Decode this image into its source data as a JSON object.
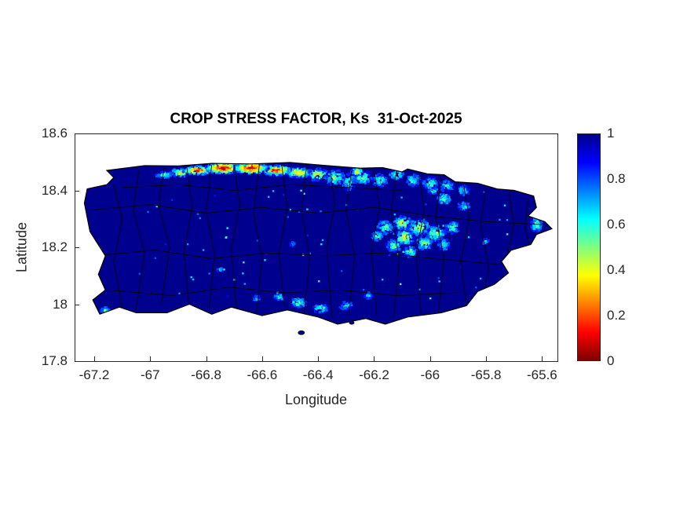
{
  "figure": {
    "title": "CROP STRESS FACTOR, Ks  31-Oct-2025",
    "xlabel": "Longitude",
    "ylabel": "Latitude",
    "background_color": "#ffffff",
    "axis_color": "#262626",
    "title_color": "#000000"
  },
  "chart_data": {
    "type": "heatmap",
    "title": "CROP STRESS FACTOR, Ks  31-Oct-2025",
    "variable": "Crop stress factor Ks",
    "date": "31-Oct-2025",
    "region": "Puerto Rico (municipal boundaries shown)",
    "xlabel": "Longitude",
    "ylabel": "Latitude",
    "xlim": [
      -67.27,
      -65.545
    ],
    "ylim": [
      17.8,
      18.6
    ],
    "grid": false,
    "x_ticks": [
      {
        "v": -67.2,
        "label": "-67.2"
      },
      {
        "v": -67,
        "label": "-67"
      },
      {
        "v": -66.8,
        "label": "-66.8"
      },
      {
        "v": -66.6,
        "label": "-66.6"
      },
      {
        "v": -66.4,
        "label": "-66.4"
      },
      {
        "v": -66.2,
        "label": "-66.2"
      },
      {
        "v": -66,
        "label": "-66"
      },
      {
        "v": -65.8,
        "label": "-65.8"
      },
      {
        "v": -65.6,
        "label": "-65.6"
      }
    ],
    "y_ticks": [
      {
        "v": 17.8,
        "label": "17.8"
      },
      {
        "v": 18,
        "label": "18"
      },
      {
        "v": 18.2,
        "label": "18.2"
      },
      {
        "v": 18.4,
        "label": "18.4"
      },
      {
        "v": 18.6,
        "label": "18.6"
      }
    ],
    "colorbar": {
      "position": "right",
      "ticks": [
        {
          "v": 0,
          "label": "0"
        },
        {
          "v": 0.2,
          "label": "0.2"
        },
        {
          "v": 0.4,
          "label": "0.4"
        },
        {
          "v": 0.6,
          "label": "0.6"
        },
        {
          "v": 0.8,
          "label": "0.8"
        },
        {
          "v": 1,
          "label": "1"
        }
      ],
      "range": [
        0,
        1
      ],
      "colormap": "jet reversed (Ks=1 dark blue, Ks=0 dark red)"
    },
    "colormap_stops": [
      {
        "t": 0,
        "color": "#00008F"
      },
      {
        "t": 0.125,
        "color": "#0000FF"
      },
      {
        "t": 0.375,
        "color": "#00FFFF"
      },
      {
        "t": 0.625,
        "color": "#FFFF00"
      },
      {
        "t": 0.875,
        "color": "#FF0000"
      },
      {
        "t": 1,
        "color": "#7F0000"
      }
    ],
    "base_value": 1,
    "coastline": [
      [
        -67.155,
        18.47
      ],
      [
        -67.02,
        18.487
      ],
      [
        -66.9,
        18.486
      ],
      [
        -66.78,
        18.495
      ],
      [
        -66.64,
        18.493
      ],
      [
        -66.5,
        18.498
      ],
      [
        -66.38,
        18.488
      ],
      [
        -66.25,
        18.478
      ],
      [
        -66.17,
        18.48
      ],
      [
        -66.1,
        18.465
      ],
      [
        -66.08,
        18.475
      ],
      [
        -66.01,
        18.458
      ],
      [
        -65.95,
        18.455
      ],
      [
        -65.91,
        18.43
      ],
      [
        -65.83,
        18.425
      ],
      [
        -65.76,
        18.405
      ],
      [
        -65.7,
        18.4
      ],
      [
        -65.63,
        18.38
      ],
      [
        -65.62,
        18.34
      ],
      [
        -65.65,
        18.31
      ],
      [
        -65.59,
        18.29
      ],
      [
        -65.565,
        18.265
      ],
      [
        -65.62,
        18.245
      ],
      [
        -65.64,
        18.21
      ],
      [
        -65.71,
        18.19
      ],
      [
        -65.745,
        18.15
      ],
      [
        -65.72,
        18.11
      ],
      [
        -65.77,
        18.07
      ],
      [
        -65.83,
        18.045
      ],
      [
        -65.87,
        17.995
      ],
      [
        -65.96,
        17.97
      ],
      [
        -66.08,
        17.955
      ],
      [
        -66.16,
        17.93
      ],
      [
        -66.23,
        17.95
      ],
      [
        -66.33,
        17.93
      ],
      [
        -66.4,
        17.955
      ],
      [
        -66.51,
        17.98
      ],
      [
        -66.6,
        17.96
      ],
      [
        -66.71,
        17.99
      ],
      [
        -66.78,
        17.965
      ],
      [
        -66.86,
        18.0
      ],
      [
        -66.94,
        17.97
      ],
      [
        -67.05,
        17.97
      ],
      [
        -67.11,
        17.99
      ],
      [
        -67.18,
        17.965
      ],
      [
        -67.205,
        18.015
      ],
      [
        -67.16,
        18.05
      ],
      [
        -67.185,
        18.105
      ],
      [
        -67.16,
        18.17
      ],
      [
        -67.215,
        18.255
      ],
      [
        -67.225,
        18.305
      ],
      [
        -67.235,
        18.355
      ],
      [
        -67.225,
        18.405
      ],
      [
        -67.155,
        18.42
      ],
      [
        -67.13,
        18.445
      ]
    ],
    "islets": [
      [
        -66.46,
        17.9,
        4,
        2.5
      ],
      [
        -66.28,
        17.935,
        3,
        2
      ]
    ],
    "municipal_borders": [
      [
        [
          -67.13,
          18.42
        ],
        [
          -67.1,
          18.3
        ],
        [
          -67.13,
          18.15
        ],
        [
          -67.1,
          17.99
        ]
      ],
      [
        [
          -67.04,
          18.47
        ],
        [
          -67.06,
          18.33
        ],
        [
          -67.02,
          18.18
        ],
        [
          -67.05,
          17.98
        ]
      ],
      [
        [
          -66.95,
          18.48
        ],
        [
          -66.97,
          18.35
        ],
        [
          -66.93,
          18.2
        ],
        [
          -66.96,
          18.0
        ]
      ],
      [
        [
          -66.87,
          18.49
        ],
        [
          -66.85,
          18.34
        ],
        [
          -66.88,
          18.18
        ],
        [
          -66.86,
          17.99
        ]
      ],
      [
        [
          -66.78,
          18.49
        ],
        [
          -66.8,
          18.33
        ],
        [
          -66.77,
          18.17
        ],
        [
          -66.79,
          17.98
        ]
      ],
      [
        [
          -66.7,
          18.49
        ],
        [
          -66.68,
          18.35
        ],
        [
          -66.71,
          18.19
        ],
        [
          -66.69,
          17.97
        ]
      ],
      [
        [
          -66.61,
          18.49
        ],
        [
          -66.63,
          18.32
        ],
        [
          -66.6,
          18.16
        ],
        [
          -66.62,
          17.97
        ]
      ],
      [
        [
          -66.53,
          18.49
        ],
        [
          -66.51,
          18.34
        ],
        [
          -66.54,
          18.18
        ],
        [
          -66.52,
          17.99
        ]
      ],
      [
        [
          -66.44,
          18.5
        ],
        [
          -66.46,
          18.33
        ],
        [
          -66.43,
          18.17
        ],
        [
          -66.45,
          17.96
        ]
      ],
      [
        [
          -66.36,
          18.49
        ],
        [
          -66.34,
          18.35
        ],
        [
          -66.37,
          18.2
        ],
        [
          -66.35,
          17.95
        ]
      ],
      [
        [
          -66.28,
          18.47
        ],
        [
          -66.3,
          18.33
        ],
        [
          -66.27,
          18.17
        ],
        [
          -66.29,
          17.96
        ]
      ],
      [
        [
          -66.2,
          18.47
        ],
        [
          -66.18,
          18.34
        ],
        [
          -66.21,
          18.19
        ],
        [
          -66.19,
          17.96
        ]
      ],
      [
        [
          -66.12,
          18.47
        ],
        [
          -66.14,
          18.32
        ],
        [
          -66.11,
          18.16
        ],
        [
          -66.13,
          17.95
        ]
      ],
      [
        [
          -66.04,
          18.45
        ],
        [
          -66.02,
          18.33
        ],
        [
          -66.05,
          18.18
        ],
        [
          -66.03,
          17.94
        ]
      ],
      [
        [
          -65.96,
          18.44
        ],
        [
          -65.98,
          18.31
        ],
        [
          -65.95,
          18.16
        ],
        [
          -65.97,
          17.97
        ]
      ],
      [
        [
          -65.88,
          18.42
        ],
        [
          -65.86,
          18.3
        ],
        [
          -65.89,
          18.15
        ],
        [
          -65.87,
          17.99
        ]
      ],
      [
        [
          -65.8,
          18.41
        ],
        [
          -65.82,
          18.28
        ],
        [
          -65.79,
          18.13
        ],
        [
          -65.81,
          18.03
        ]
      ],
      [
        [
          -65.72,
          18.4
        ],
        [
          -65.7,
          18.28
        ],
        [
          -65.73,
          18.15
        ],
        [
          -65.71,
          18.08
        ]
      ],
      [
        [
          -65.65,
          18.37
        ],
        [
          -65.66,
          18.27
        ],
        [
          -65.64,
          18.18
        ]
      ],
      [
        [
          -67.22,
          18.33
        ],
        [
          -67.0,
          18.35
        ],
        [
          -66.8,
          18.32
        ],
        [
          -66.6,
          18.34
        ],
        [
          -66.4,
          18.32
        ],
        [
          -66.2,
          18.34
        ],
        [
          -66.0,
          18.31
        ],
        [
          -65.8,
          18.29
        ],
        [
          -65.6,
          18.28
        ]
      ],
      [
        [
          -67.2,
          18.17
        ],
        [
          -66.98,
          18.19
        ],
        [
          -66.78,
          18.16
        ],
        [
          -66.58,
          18.18
        ],
        [
          -66.38,
          18.17
        ],
        [
          -66.18,
          18.18
        ],
        [
          -65.98,
          18.16
        ],
        [
          -65.76,
          18.14
        ]
      ],
      [
        [
          -67.15,
          18.05
        ],
        [
          -66.92,
          18.03
        ],
        [
          -66.72,
          18.06
        ],
        [
          -66.52,
          18.04
        ],
        [
          -66.32,
          18.05
        ],
        [
          -66.12,
          18.03
        ],
        [
          -65.9,
          18.04
        ]
      ],
      [
        [
          -67.1,
          18.41
        ],
        [
          -66.9,
          18.42
        ],
        [
          -66.7,
          18.4
        ],
        [
          -66.5,
          18.42
        ],
        [
          -66.3,
          18.41
        ],
        [
          -66.1,
          18.4
        ]
      ]
    ],
    "stress_regions_format": "[lon_center, lat_center, lon_radius_deg, lat_radius_deg, ks_value]",
    "stress_regions": [
      [
        -66.95,
        18.455,
        0.03,
        0.012,
        0.55
      ],
      [
        -66.89,
        18.462,
        0.04,
        0.015,
        0.4
      ],
      [
        -66.83,
        18.47,
        0.055,
        0.016,
        0.15
      ],
      [
        -66.74,
        18.478,
        0.065,
        0.02,
        0.05
      ],
      [
        -66.64,
        18.478,
        0.065,
        0.02,
        0.05
      ],
      [
        -66.55,
        18.47,
        0.055,
        0.018,
        0.12
      ],
      [
        -66.47,
        18.462,
        0.045,
        0.018,
        0.3
      ],
      [
        -66.4,
        18.455,
        0.04,
        0.022,
        0.4
      ],
      [
        -66.34,
        18.445,
        0.035,
        0.028,
        0.5
      ],
      [
        -66.29,
        18.43,
        0.025,
        0.03,
        0.55
      ],
      [
        -66.26,
        18.465,
        0.022,
        0.014,
        0.3
      ],
      [
        -66.24,
        18.445,
        0.03,
        0.025,
        0.5
      ],
      [
        -66.18,
        18.435,
        0.028,
        0.022,
        0.55
      ],
      [
        -66.12,
        18.455,
        0.025,
        0.018,
        0.5
      ],
      [
        -66.06,
        18.435,
        0.025,
        0.02,
        0.58
      ],
      [
        -66.0,
        18.425,
        0.028,
        0.022,
        0.55
      ],
      [
        -65.94,
        18.415,
        0.025,
        0.02,
        0.6
      ],
      [
        -65.88,
        18.4,
        0.022,
        0.018,
        0.62
      ],
      [
        -66.16,
        18.27,
        0.03,
        0.025,
        0.55
      ],
      [
        -66.1,
        18.285,
        0.035,
        0.025,
        0.45
      ],
      [
        -66.04,
        18.27,
        0.04,
        0.03,
        0.42
      ],
      [
        -65.98,
        18.25,
        0.035,
        0.03,
        0.5
      ],
      [
        -66.09,
        18.235,
        0.035,
        0.028,
        0.4
      ],
      [
        -66.02,
        18.215,
        0.03,
        0.025,
        0.5
      ],
      [
        -66.13,
        18.205,
        0.028,
        0.022,
        0.52
      ],
      [
        -66.07,
        18.185,
        0.025,
        0.02,
        0.55
      ],
      [
        -65.95,
        18.21,
        0.022,
        0.02,
        0.58
      ],
      [
        -65.92,
        18.27,
        0.025,
        0.022,
        0.55
      ],
      [
        -66.19,
        18.24,
        0.02,
        0.018,
        0.5
      ],
      [
        -65.95,
        18.37,
        0.025,
        0.02,
        0.55
      ],
      [
        -65.88,
        18.345,
        0.02,
        0.016,
        0.6
      ],
      [
        -65.99,
        18.4,
        0.018,
        0.014,
        0.58
      ],
      [
        -65.62,
        18.28,
        0.022,
        0.025,
        0.55
      ],
      [
        -65.6,
        18.34,
        0.015,
        0.015,
        0.62
      ],
      [
        -66.47,
        18.005,
        0.03,
        0.018,
        0.52
      ],
      [
        -66.39,
        17.985,
        0.03,
        0.015,
        0.55
      ],
      [
        -66.3,
        17.995,
        0.025,
        0.014,
        0.6
      ],
      [
        -66.54,
        18.025,
        0.018,
        0.012,
        0.6
      ],
      [
        -66.22,
        18.03,
        0.016,
        0.012,
        0.65
      ],
      [
        -66.62,
        18.02,
        0.014,
        0.01,
        0.65
      ],
      [
        -67.16,
        17.975,
        0.018,
        0.014,
        0.55
      ],
      [
        -66.75,
        18.12,
        0.01,
        0.008,
        0.7
      ],
      [
        -66.49,
        18.21,
        0.01,
        0.008,
        0.72
      ],
      [
        -65.8,
        18.22,
        0.012,
        0.01,
        0.68
      ]
    ],
    "speckle": {
      "count": 80,
      "ks_min": 0.55,
      "ks_max": 0.9,
      "lon_range": [
        -67.08,
        -65.72
      ],
      "lat_range": [
        18.02,
        18.4
      ]
    }
  }
}
